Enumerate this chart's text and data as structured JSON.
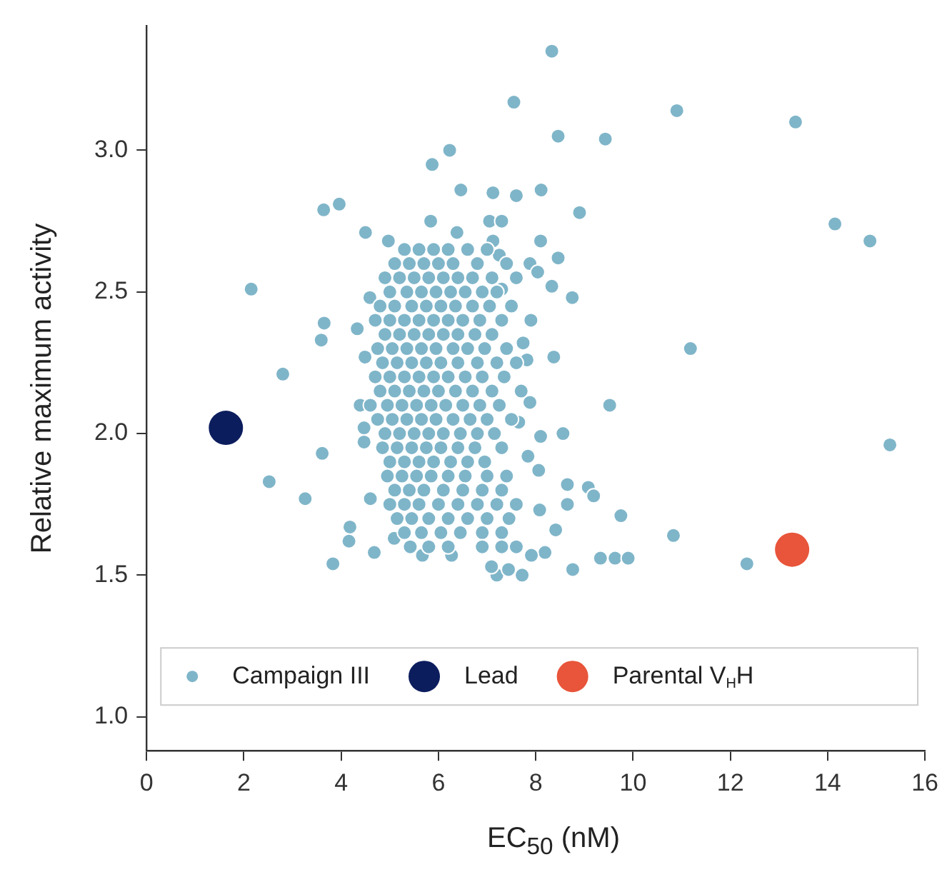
{
  "chart_data": {
    "type": "scatter",
    "xlabel": "EC$_{50}$ (nM)",
    "ylabel": "Relative maximum activity",
    "xlim": [
      0,
      16
    ],
    "xticks": [
      0,
      2,
      4,
      6,
      8,
      10,
      12,
      14,
      16
    ],
    "ylim": [
      0.88,
      3.44
    ],
    "yticks": [
      {
        "value": 1,
        "label": "1.0"
      },
      1.5,
      {
        "value": 2,
        "label": "2.0"
      },
      2.5,
      {
        "value": 3,
        "label": "3.0"
      }
    ],
    "grid": false,
    "legend": "bottom",
    "marker": "circle",
    "series": [
      {
        "name": "Campaign III",
        "color": "#7fb5c9",
        "x": [
          8.33,
          7.55,
          10.9,
          13.34,
          8.46,
          9.43,
          6.23,
          5.87,
          3.96,
          3.64,
          7.12,
          7.6,
          8.11,
          8.9,
          6.46,
          14.15,
          14.87,
          4.5,
          5.84,
          6.38,
          7.05,
          7.3,
          7.12,
          8.1,
          8.46,
          7.25,
          4.97,
          7.88,
          8.04,
          2.15,
          8.33,
          8.75,
          3.65,
          3.59,
          11.18,
          2.8,
          8.37,
          9.52,
          15.28,
          3.61,
          2.52,
          3.26,
          4.18,
          4.16,
          3.83,
          4.68,
          9.75,
          10.83,
          12.34,
          9.33,
          9.63,
          9.9,
          8.76,
          7.72,
          7.2,
          7.44,
          7.09,
          9.08,
          9.19,
          8.56,
          8.1,
          7.84,
          8.06,
          8.65,
          8.65,
          8.41,
          8.08,
          8.19,
          7.91,
          6.27,
          5.67,
          5.42,
          5.09,
          4.6,
          4.47,
          4.47,
          4.39,
          4.49,
          4.33,
          4.59,
          7.3,
          7.82,
          7.74,
          7.65,
          7.88,
          5.3,
          5.6,
          5.9,
          6.2,
          6.6,
          7.0,
          5.1,
          5.4,
          5.7,
          6.0,
          6.3,
          6.8,
          7.4,
          4.9,
          5.2,
          5.5,
          5.8,
          6.1,
          6.4,
          6.7,
          7.1,
          7.6,
          5.0,
          5.35,
          5.65,
          5.95,
          6.25,
          6.55,
          6.9,
          7.2,
          4.8,
          5.1,
          5.45,
          5.75,
          6.05,
          6.35,
          6.7,
          7.05,
          7.5,
          4.7,
          5.0,
          5.3,
          5.6,
          5.9,
          6.2,
          6.5,
          6.85,
          7.3,
          7.9,
          4.9,
          5.2,
          5.5,
          5.8,
          6.1,
          6.4,
          6.75,
          7.1,
          4.75,
          5.05,
          5.35,
          5.65,
          5.95,
          6.3,
          6.6,
          6.95,
          7.4,
          4.85,
          5.15,
          5.45,
          5.75,
          6.05,
          6.4,
          6.8,
          7.2,
          7.6,
          4.7,
          5.0,
          5.3,
          5.6,
          5.9,
          6.2,
          6.55,
          6.9,
          7.35,
          4.8,
          5.1,
          5.4,
          5.7,
          6.0,
          6.35,
          6.7,
          7.1,
          7.7,
          4.6,
          4.95,
          5.25,
          5.55,
          5.85,
          6.15,
          6.5,
          6.85,
          7.25,
          4.75,
          5.05,
          5.35,
          5.65,
          5.95,
          6.3,
          6.65,
          7.0,
          7.5,
          4.9,
          5.2,
          5.5,
          5.8,
          6.1,
          6.45,
          6.8,
          7.15,
          4.85,
          5.15,
          5.45,
          5.75,
          6.05,
          6.4,
          6.75,
          7.3,
          5.0,
          5.3,
          5.6,
          5.9,
          6.25,
          6.6,
          6.95,
          4.95,
          5.25,
          5.55,
          5.85,
          6.2,
          6.55,
          7.0,
          7.4,
          5.1,
          5.4,
          5.7,
          6.1,
          6.5,
          6.9,
          7.3,
          5.0,
          5.3,
          5.6,
          6.0,
          6.4,
          6.8,
          7.2,
          7.6,
          5.15,
          5.45,
          5.8,
          6.2,
          6.6,
          7.0,
          7.45,
          5.3,
          5.65,
          6.05,
          6.45,
          6.9,
          7.3,
          5.8,
          6.2,
          6.9,
          7.3,
          7.6
        ],
        "values": [
          3.35,
          3.17,
          3.14,
          3.1,
          3.05,
          3.04,
          3.0,
          2.95,
          2.81,
          2.79,
          2.85,
          2.84,
          2.86,
          2.78,
          2.86,
          2.74,
          2.68,
          2.71,
          2.75,
          2.71,
          2.75,
          2.75,
          2.68,
          2.68,
          2.62,
          2.63,
          2.68,
          2.6,
          2.57,
          2.51,
          2.52,
          2.48,
          2.39,
          2.33,
          2.3,
          2.21,
          2.27,
          2.1,
          1.96,
          1.93,
          1.83,
          1.77,
          1.67,
          1.62,
          1.54,
          1.58,
          1.71,
          1.64,
          1.54,
          1.56,
          1.56,
          1.56,
          1.52,
          1.5,
          1.5,
          1.52,
          1.53,
          1.81,
          1.78,
          2.0,
          1.99,
          1.92,
          1.87,
          1.82,
          1.75,
          1.66,
          1.73,
          1.58,
          1.57,
          1.57,
          1.57,
          1.6,
          1.63,
          1.77,
          2.02,
          1.97,
          2.1,
          2.27,
          2.37,
          2.48,
          2.51,
          2.26,
          2.32,
          2.04,
          2.11,
          2.65,
          2.65,
          2.65,
          2.65,
          2.65,
          2.65,
          2.6,
          2.6,
          2.6,
          2.6,
          2.6,
          2.6,
          2.6,
          2.55,
          2.55,
          2.55,
          2.55,
          2.55,
          2.55,
          2.55,
          2.55,
          2.55,
          2.5,
          2.5,
          2.5,
          2.5,
          2.5,
          2.5,
          2.5,
          2.5,
          2.45,
          2.45,
          2.45,
          2.45,
          2.45,
          2.45,
          2.45,
          2.45,
          2.45,
          2.4,
          2.4,
          2.4,
          2.4,
          2.4,
          2.4,
          2.4,
          2.4,
          2.4,
          2.4,
          2.35,
          2.35,
          2.35,
          2.35,
          2.35,
          2.35,
          2.35,
          2.35,
          2.3,
          2.3,
          2.3,
          2.3,
          2.3,
          2.3,
          2.3,
          2.3,
          2.3,
          2.25,
          2.25,
          2.25,
          2.25,
          2.25,
          2.25,
          2.25,
          2.25,
          2.25,
          2.2,
          2.2,
          2.2,
          2.2,
          2.2,
          2.2,
          2.2,
          2.2,
          2.2,
          2.15,
          2.15,
          2.15,
          2.15,
          2.15,
          2.15,
          2.15,
          2.15,
          2.15,
          2.1,
          2.1,
          2.1,
          2.1,
          2.1,
          2.1,
          2.1,
          2.1,
          2.1,
          2.05,
          2.05,
          2.05,
          2.05,
          2.05,
          2.05,
          2.05,
          2.05,
          2.05,
          2.0,
          2.0,
          2.0,
          2.0,
          2.0,
          2.0,
          2.0,
          2.0,
          1.95,
          1.95,
          1.95,
          1.95,
          1.95,
          1.95,
          1.95,
          1.95,
          1.9,
          1.9,
          1.9,
          1.9,
          1.9,
          1.9,
          1.9,
          1.85,
          1.85,
          1.85,
          1.85,
          1.85,
          1.85,
          1.85,
          1.85,
          1.8,
          1.8,
          1.8,
          1.8,
          1.8,
          1.8,
          1.8,
          1.75,
          1.75,
          1.75,
          1.75,
          1.75,
          1.75,
          1.75,
          1.75,
          1.7,
          1.7,
          1.7,
          1.7,
          1.7,
          1.7,
          1.7,
          1.65,
          1.65,
          1.65,
          1.65,
          1.65,
          1.65,
          1.6,
          1.6,
          1.6,
          1.6,
          1.6
        ]
      },
      {
        "name": "Lead",
        "color": "#0c1d5e",
        "x": [
          1.63
        ],
        "values": [
          2.02
        ]
      },
      {
        "name": "Parental V$_{H}$H",
        "color": "#e8553a",
        "x": [
          13.27
        ],
        "values": [
          1.59
        ]
      }
    ]
  }
}
